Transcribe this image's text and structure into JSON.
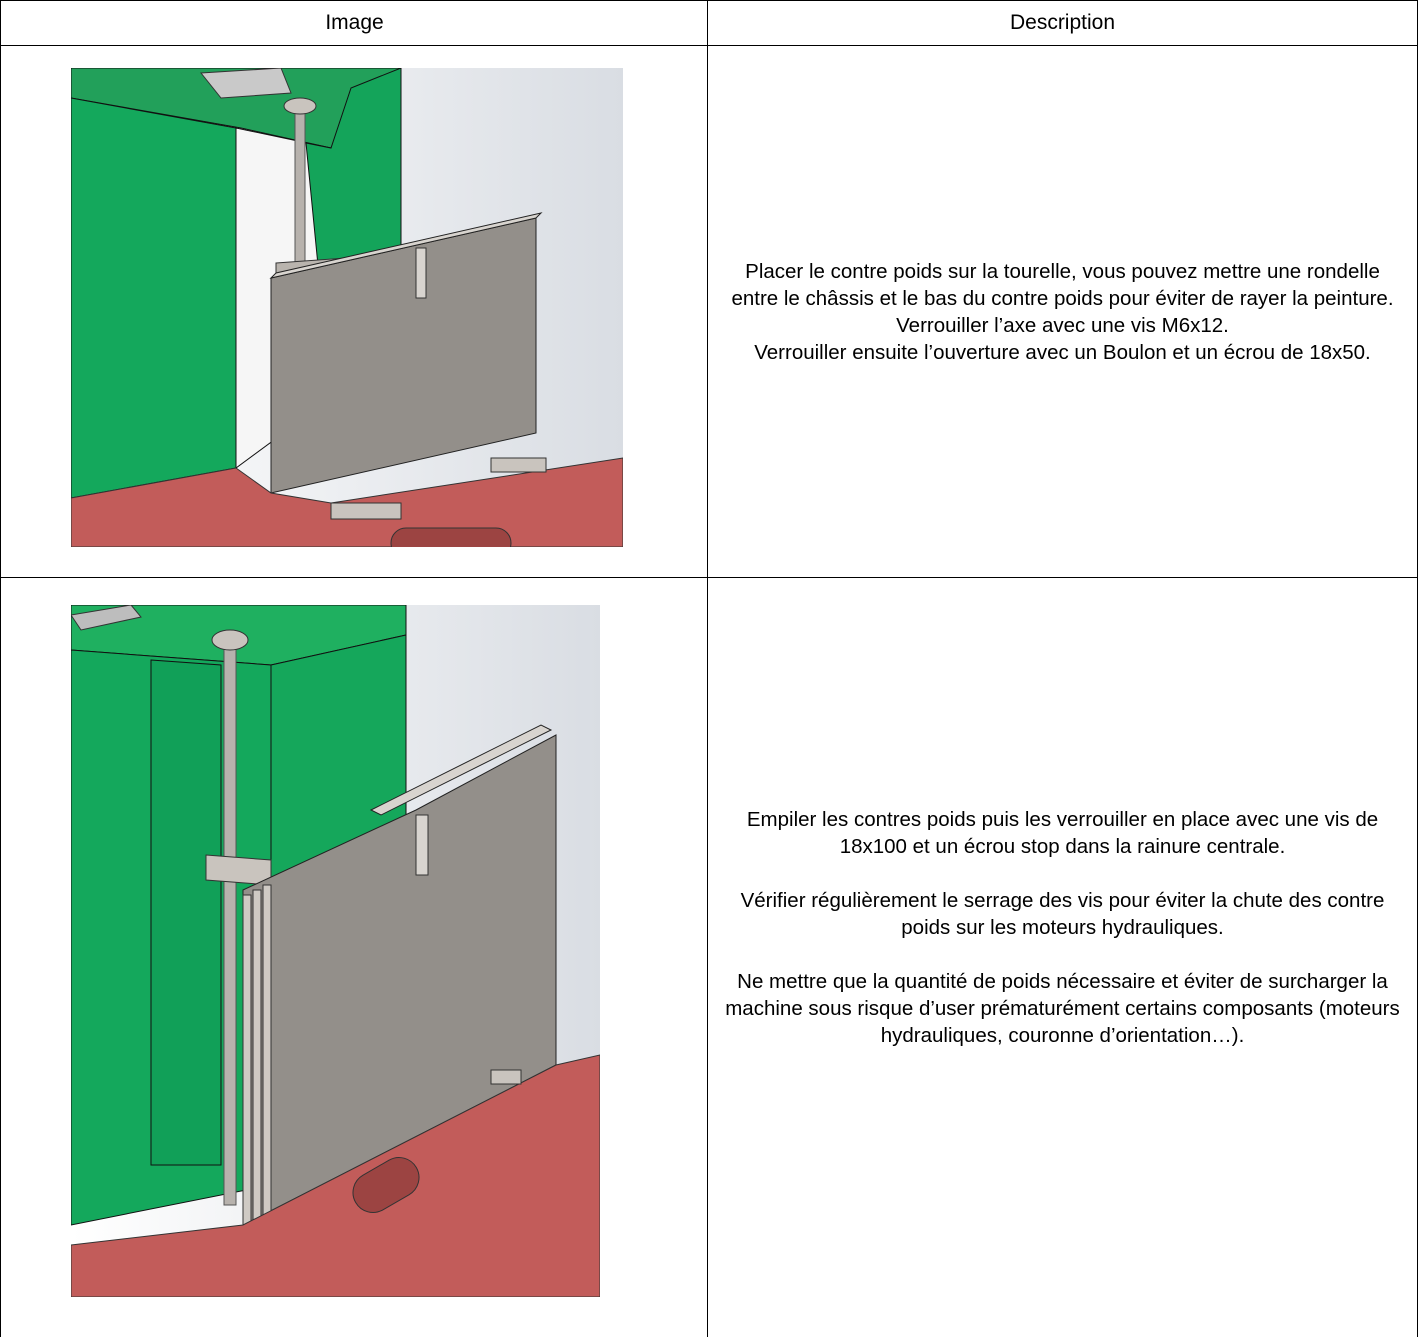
{
  "table": {
    "header": [
      "Image",
      "Description"
    ],
    "rows": [
      {
        "description": [
          "Placer le contre poids sur la tourelle, vous pouvez mettre une rondelle entre le châssis et le bas du contre poids pour éviter de rayer la peinture.",
          "Verrouiller l’axe avec une vis M6x12.",
          "Verrouiller ensuite l’ouverture avec un Boulon et un écrou de 18x50."
        ]
      },
      {
        "description": [
          "Empiler les contres poids puis les verrouiller en place avec une vis de 18x100 et un écrou stop dans la rainure centrale.",
          "Vérifier régulièrement le serrage des vis pour éviter la chute des contre poids sur les moteurs hydrauliques.",
          "Ne mettre que la quantité de poids nécessaire et éviter de surcharger la machine sous risque d’user prématurément certains composants (moteurs hydrauliques, couronne d’orientation…)."
        ]
      }
    ]
  }
}
